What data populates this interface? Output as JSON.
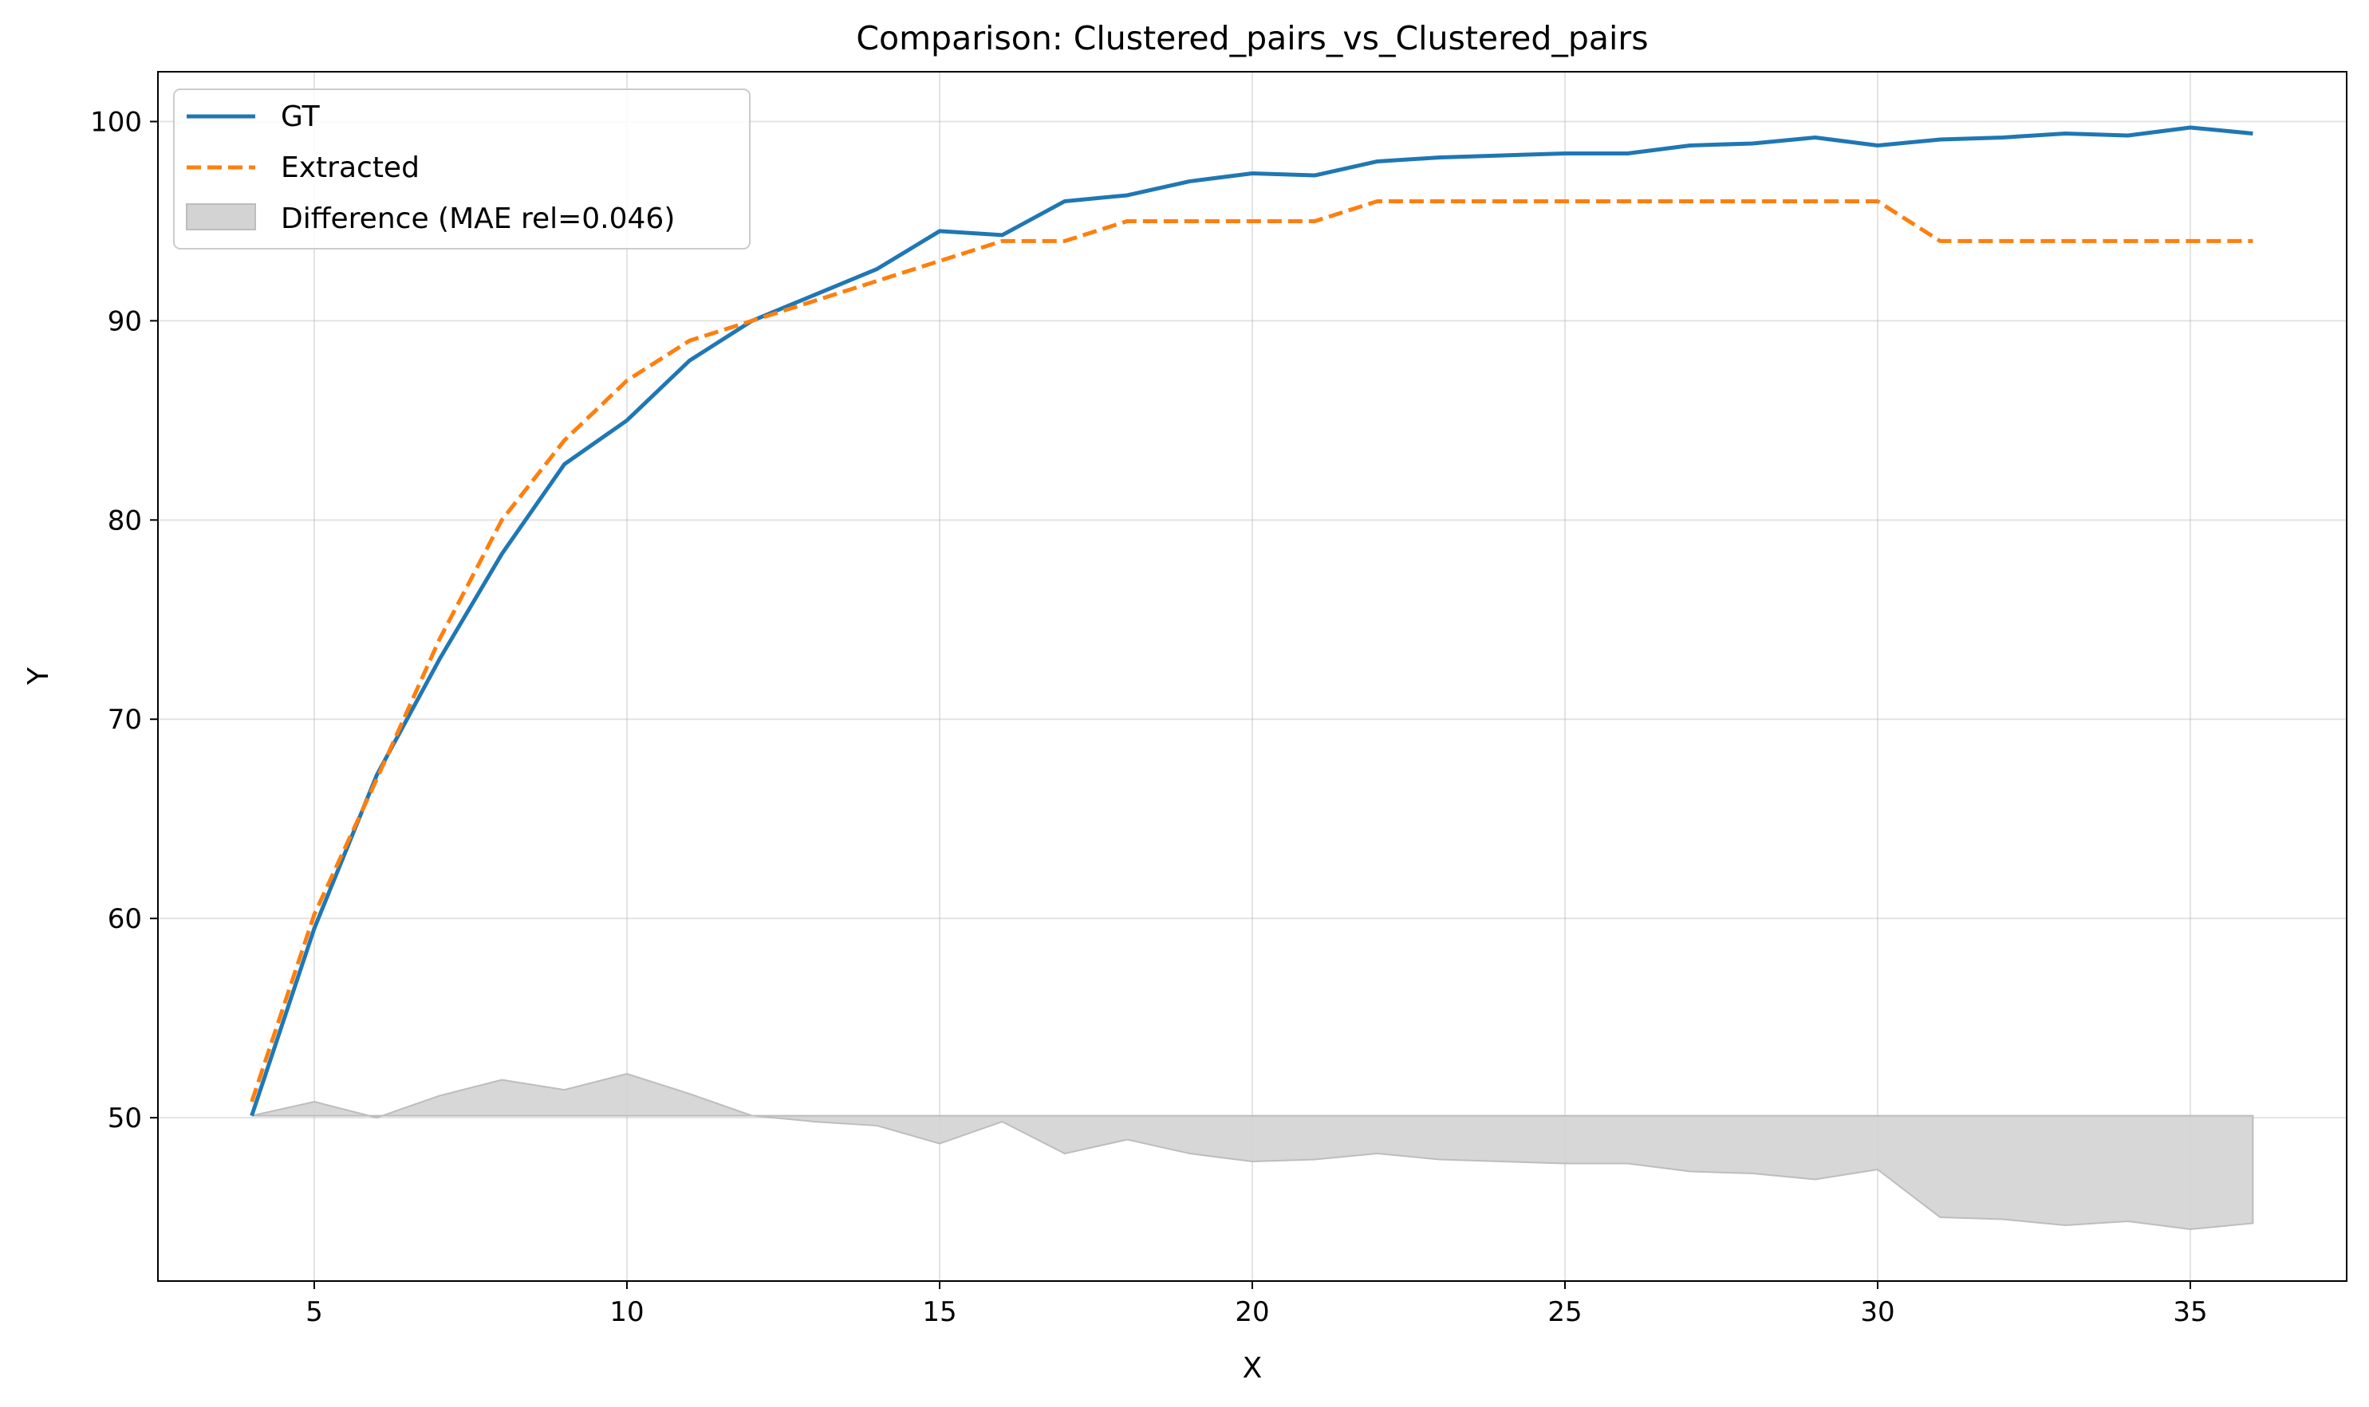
{
  "chart_data": {
    "type": "line",
    "title": "Comparison: Clustered_pairs_vs_Clustered_pairs",
    "xlabel": "X",
    "ylabel": "Y",
    "xlim": [
      2.5,
      37.5
    ],
    "ylim": [
      41.8,
      102.5
    ],
    "x_ticks": [
      5,
      10,
      15,
      20,
      25,
      30,
      35
    ],
    "y_ticks": [
      50,
      60,
      70,
      80,
      90,
      100
    ],
    "grid": true,
    "legend_position": "top-left",
    "fill_baseline": 50.1,
    "x": [
      4,
      5,
      6,
      7,
      8,
      9,
      10,
      11,
      12,
      13,
      14,
      15,
      16,
      17,
      18,
      19,
      20,
      21,
      22,
      23,
      24,
      25,
      26,
      27,
      28,
      29,
      30,
      31,
      32,
      33,
      34,
      35,
      36
    ],
    "series": [
      {
        "name": "GT",
        "style": "solid",
        "color": "#1f77b4",
        "values": [
          50.1,
          59.5,
          67.2,
          73.0,
          78.3,
          82.8,
          85.0,
          88.0,
          90.0,
          91.3,
          92.6,
          94.5,
          94.3,
          96.0,
          96.3,
          97.0,
          97.4,
          97.3,
          98.0,
          98.2,
          98.3,
          98.4,
          98.4,
          98.8,
          98.9,
          99.2,
          98.8,
          99.1,
          99.2,
          99.4,
          99.3,
          99.7,
          99.4
        ]
      },
      {
        "name": "Extracted",
        "style": "dashed",
        "color": "#ff7f0e",
        "values": [
          50.8,
          60.2,
          67.0,
          74.0,
          80.0,
          84.0,
          87.0,
          89.0,
          90.0,
          91.0,
          92.0,
          93.0,
          94.0,
          94.0,
          95.0,
          95.0,
          95.0,
          95.0,
          96.0,
          96.0,
          96.0,
          96.0,
          96.0,
          96.0,
          96.0,
          96.0,
          96.0,
          94.0,
          94.0,
          94.0,
          94.0,
          94.0,
          94.0
        ]
      }
    ],
    "difference": {
      "name": "Difference (MAE rel=0.046)",
      "color": "#d3d3d3",
      "edge_color": "#bdbdbd",
      "values": [
        50.1,
        50.8,
        50.0,
        51.1,
        51.9,
        51.4,
        52.2,
        51.2,
        50.1,
        49.8,
        49.6,
        48.7,
        49.8,
        48.2,
        48.9,
        48.2,
        47.8,
        47.9,
        48.2,
        47.9,
        47.8,
        47.7,
        47.7,
        47.3,
        47.2,
        46.9,
        47.4,
        45.0,
        44.9,
        44.6,
        44.8,
        44.4,
        44.7
      ]
    }
  }
}
